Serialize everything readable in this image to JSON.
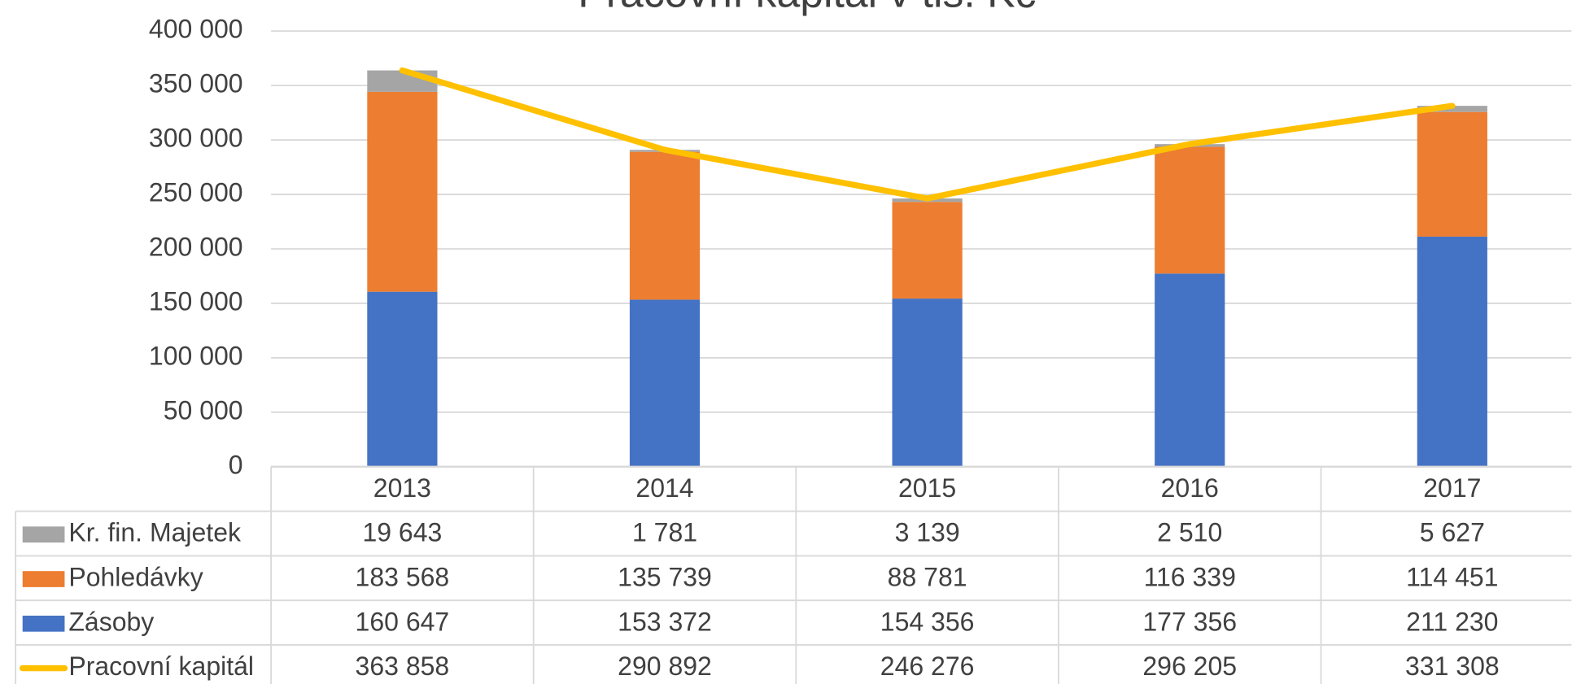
{
  "chart_data": {
    "type": "bar",
    "title": "Pracovní kapitál v tis. Kč",
    "categories": [
      "2013",
      "2014",
      "2015",
      "2016",
      "2017"
    ],
    "series": [
      {
        "name": "Kr. fin. Majetek",
        "type": "bar",
        "color": "#a5a5a5",
        "values": [
          19643,
          1781,
          3139,
          2510,
          5627
        ],
        "value_labels": [
          "19 643",
          "1 781",
          "3 139",
          "2 510",
          "5 627"
        ]
      },
      {
        "name": "Pohledávky",
        "type": "bar",
        "color": "#ed7d31",
        "values": [
          183568,
          135739,
          88781,
          116339,
          114451
        ],
        "value_labels": [
          "183 568",
          "135 739",
          "88 781",
          "116 339",
          "114 451"
        ]
      },
      {
        "name": "Zásoby",
        "type": "bar",
        "color": "#4472c4",
        "values": [
          160647,
          153372,
          154356,
          177356,
          211230
        ],
        "value_labels": [
          "160 647",
          "153 372",
          "154 356",
          "177 356",
          "211 230"
        ]
      },
      {
        "name": "Pracovní kapitál",
        "type": "line",
        "color": "#ffc000",
        "values": [
          363858,
          290892,
          246276,
          296205,
          331308
        ],
        "value_labels": [
          "363 858",
          "290 892",
          "246 276",
          "296 205",
          "331 308"
        ]
      }
    ],
    "ylim": [
      0,
      400000
    ],
    "yticks": [
      0,
      {
        "value": 50000,
        "label": "50 000"
      },
      {
        "value": 100000,
        "label": "100 000"
      },
      {
        "value": 150000,
        "label": "150 000"
      },
      {
        "value": 200000,
        "label": "200 000"
      },
      {
        "value": 250000,
        "label": "250 000"
      },
      {
        "value": 300000,
        "label": "300 000"
      },
      {
        "value": 350000,
        "label": "350 000"
      },
      {
        "value": 400000,
        "label": "400 000"
      }
    ],
    "grid": true,
    "data_table": true
  }
}
